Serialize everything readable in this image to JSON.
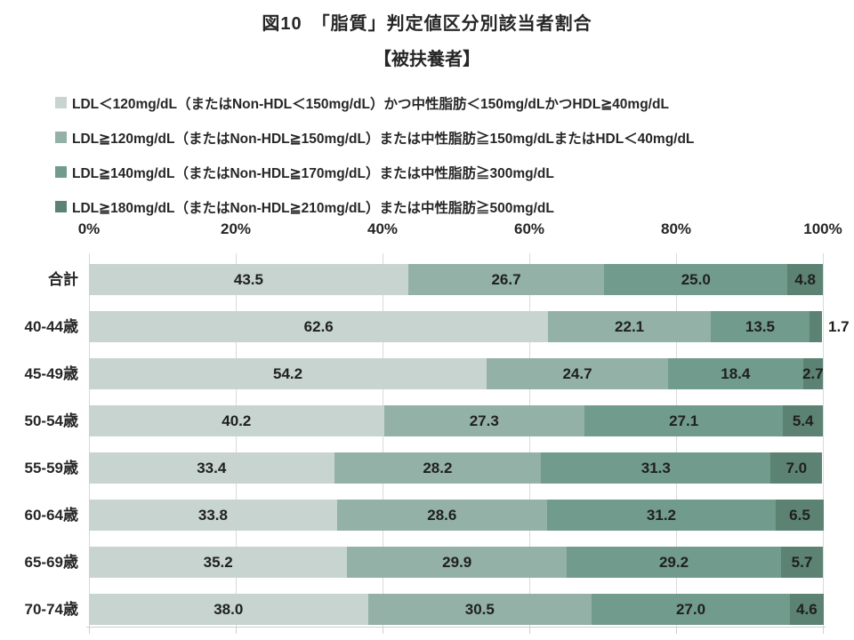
{
  "figure": {
    "title": "図10　「脂質」判定値区分別該当者割合",
    "subtitle": "【被扶養者】"
  },
  "chart_data": {
    "type": "bar",
    "variant": "stacked-horizontal",
    "unit": "%",
    "xlim": [
      0,
      100
    ],
    "x_ticks": [
      "0%",
      "20%",
      "40%",
      "60%",
      "80%",
      "100%"
    ],
    "grid": "vertical-light-gray",
    "legend_position": "top-left",
    "value_label_decimals": 1,
    "categories": [
      "合計",
      "40-44歳",
      "45-49歳",
      "50-54歳",
      "55-59歳",
      "60-64歳",
      "65-69歳",
      "70-74歳"
    ],
    "series": [
      {
        "name": "LDL＜120mg/dL（またはNon-HDL＜150mg/dL）かつ中性脂肪＜150mg/dLかつHDL≧40mg/dL",
        "color": "#c7d4d0",
        "values": [
          43.5,
          62.6,
          54.2,
          40.2,
          33.4,
          33.8,
          35.2,
          38.0
        ]
      },
      {
        "name": "LDL≧120mg/dL（またはNon-HDL≧150mg/dL）または中性脂肪≧150mg/dLまたはHDL＜40mg/dL",
        "color": "#93b1a6",
        "values": [
          26.7,
          22.1,
          24.7,
          27.3,
          28.2,
          28.6,
          29.9,
          30.5
        ]
      },
      {
        "name": "LDL≧140mg/dL（またはNon-HDL≧170mg/dL）または中性脂肪≧300mg/dL",
        "color": "#719b8d",
        "values": [
          25.0,
          13.5,
          18.4,
          27.1,
          31.3,
          31.2,
          29.2,
          27.0
        ]
      },
      {
        "name": "LDL≧180mg/dL（またはNon-HDL≧210mg/dL）または中性脂肪≧500mg/dL",
        "color": "#5b8273",
        "values": [
          4.8,
          1.7,
          2.7,
          5.4,
          7.0,
          6.5,
          5.7,
          4.6
        ]
      }
    ]
  }
}
